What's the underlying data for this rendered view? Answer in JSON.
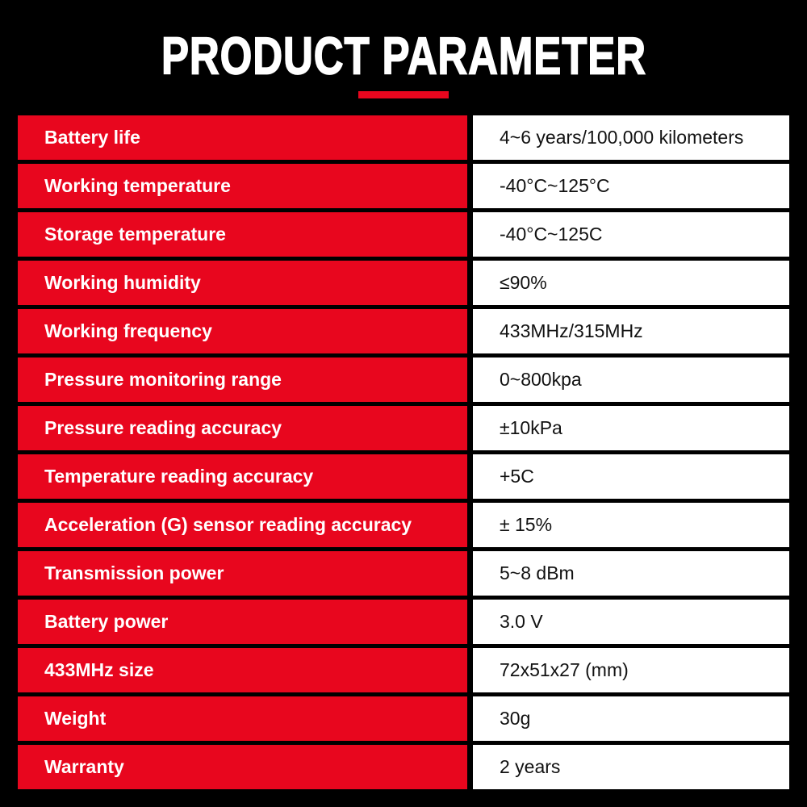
{
  "title": "PRODUCT PARAMETER",
  "colors": {
    "accent": "#e8061e",
    "background": "#000000",
    "value_bg": "#ffffff"
  },
  "rows": [
    {
      "label": "Battery life",
      "value": "4~6 years/100,000 kilometers"
    },
    {
      "label": "Working temperature",
      "value": "-40°C~125°C"
    },
    {
      "label": "Storage temperature",
      "value": "-40°C~125C"
    },
    {
      "label": "Working humidity",
      "value": "≤90%"
    },
    {
      "label": "Working frequency",
      "value": "433MHz/315MHz"
    },
    {
      "label": "Pressure monitoring range",
      "value": "0~800kpa"
    },
    {
      "label": "Pressure reading accuracy",
      "value": "±10kPa"
    },
    {
      "label": "Temperature reading accuracy",
      "value": "+5C"
    },
    {
      "label": "Acceleration (G) sensor reading accuracy",
      "value": "± 15%"
    },
    {
      "label": "Transmission power",
      "value": "5~8 dBm"
    },
    {
      "label": "Battery power",
      "value": "3.0 V"
    },
    {
      "label": "433MHz size",
      "value": "72x51x27 (mm)"
    },
    {
      "label": "Weight",
      "value": "30g"
    },
    {
      "label": "Warranty",
      "value": "2 years"
    }
  ]
}
